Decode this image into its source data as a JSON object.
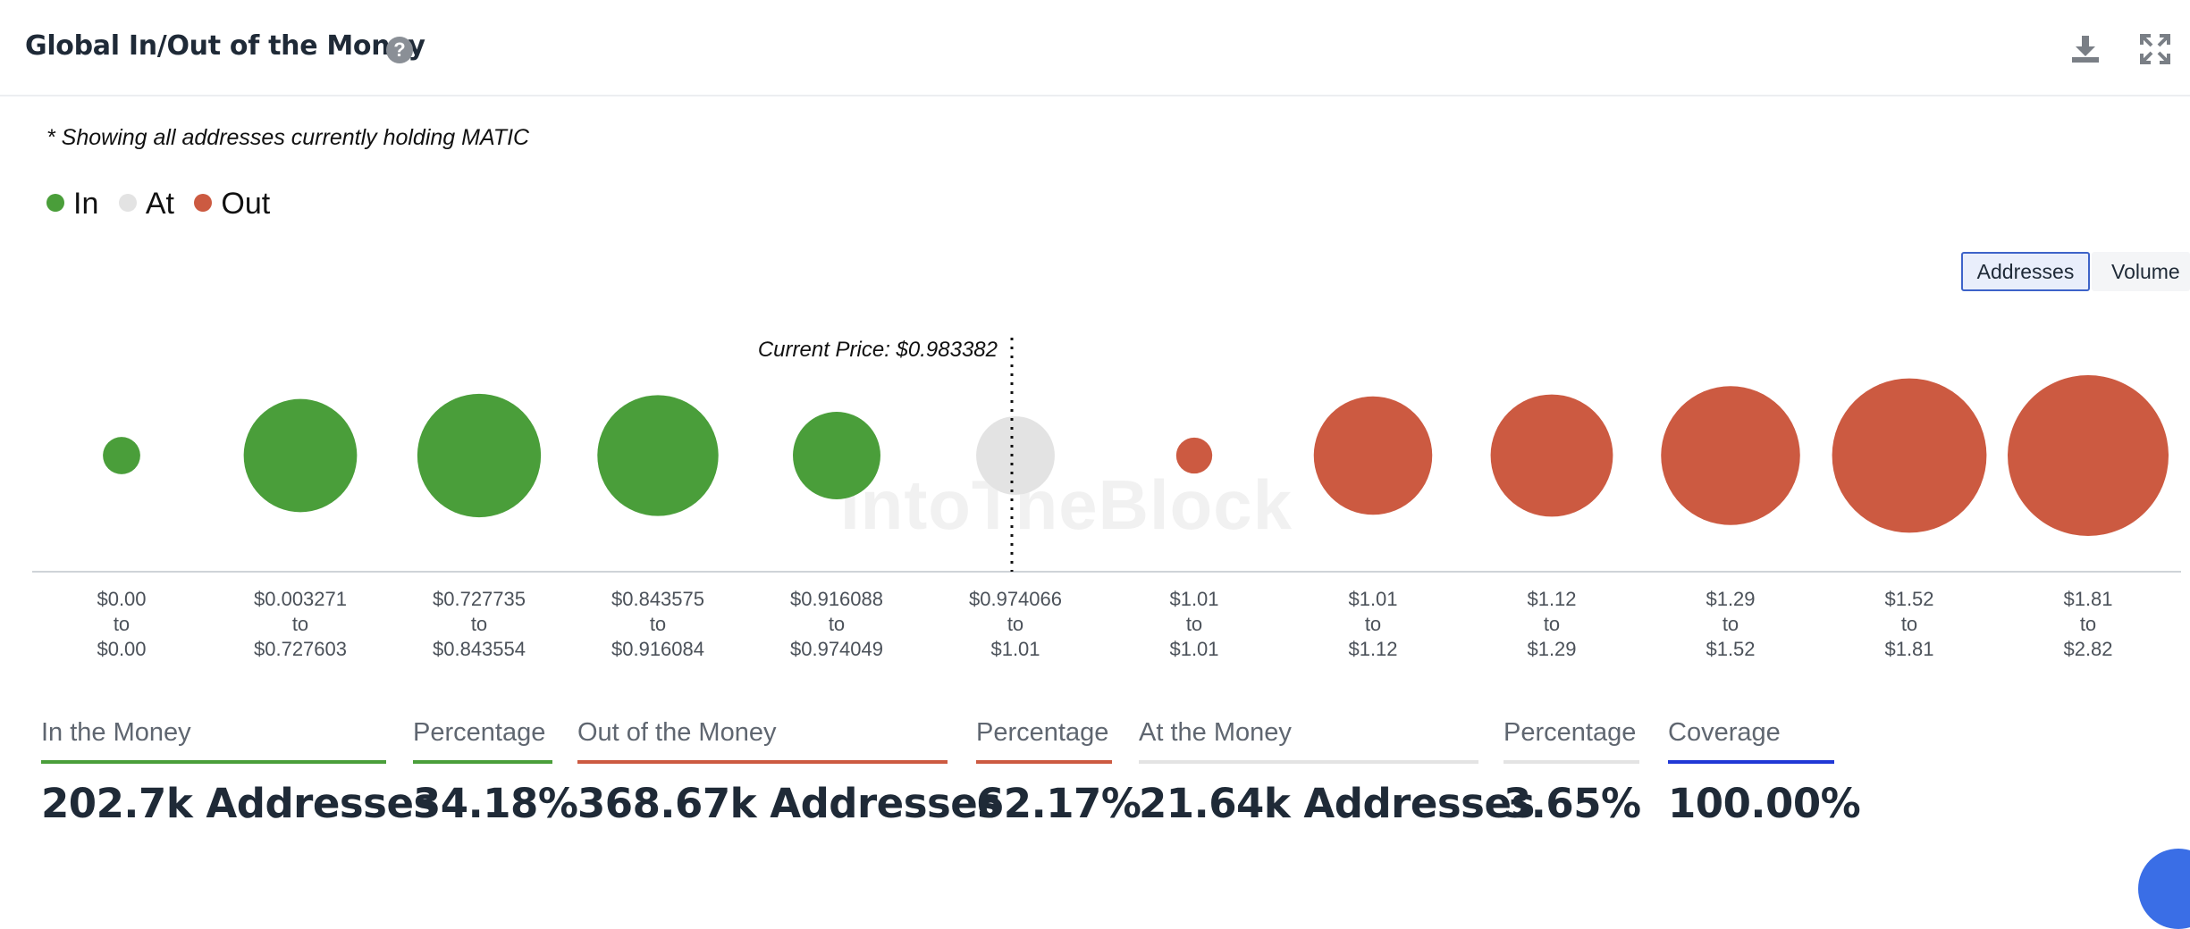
{
  "header": {
    "title": "Global In/Out of the Money",
    "help_icon": "question-circle-icon",
    "download_icon": "download-icon",
    "expand_icon": "expand-icon"
  },
  "note": "* Showing all addresses currently holding MATIC",
  "legend": [
    {
      "label": "In",
      "color": "#4a9e3a"
    },
    {
      "label": "At",
      "color": "#e3e3e3"
    },
    {
      "label": "Out",
      "color": "#cc5a41"
    }
  ],
  "toggle": {
    "addresses_label": "Addresses",
    "volume_label": "Volume",
    "selected": "Addresses"
  },
  "chart_data": {
    "type": "bubble",
    "current_price_label": "Current Price: $0.983382",
    "current_price": 0.983382,
    "watermark": "IntoTheBlock",
    "categories": [
      {
        "from": "$0.00",
        "to": "$0.00",
        "status": "in",
        "relative_size": 0.04
      },
      {
        "from": "$0.003271",
        "to": "$0.727603",
        "status": "in",
        "relative_size": 0.63
      },
      {
        "from": "$0.727735",
        "to": "$0.843554",
        "status": "in",
        "relative_size": 0.71
      },
      {
        "from": "$0.843575",
        "to": "$0.916084",
        "status": "in",
        "relative_size": 0.69
      },
      {
        "from": "$0.916088",
        "to": "$0.974049",
        "status": "in",
        "relative_size": 0.43
      },
      {
        "from": "$0.974066",
        "to": "$1.01",
        "status": "at",
        "relative_size": 0.36
      },
      {
        "from": "$1.01",
        "to": "$1.01",
        "status": "out",
        "relative_size": 0.03
      },
      {
        "from": "$1.01",
        "to": "$1.12",
        "status": "out",
        "relative_size": 0.67
      },
      {
        "from": "$1.12",
        "to": "$1.29",
        "status": "out",
        "relative_size": 0.7
      },
      {
        "from": "$1.29",
        "to": "$1.52",
        "status": "out",
        "relative_size": 0.83
      },
      {
        "from": "$1.52",
        "to": "$1.81",
        "status": "out",
        "relative_size": 0.95
      },
      {
        "from": "$1.81",
        "to": "$2.82",
        "status": "out",
        "relative_size": 1.0
      }
    ],
    "colors": {
      "in": "#4a9e3a",
      "at": "#e3e3e3",
      "out": "#cc5a41"
    }
  },
  "stats": [
    {
      "label": "In the Money",
      "value": "202.7k Addresses",
      "color": "#4a9e3a"
    },
    {
      "label": "Percentage",
      "value": "34.18%",
      "color": "#4a9e3a"
    },
    {
      "label": "Out of the Money",
      "value": "368.67k Addresses",
      "color": "#cc5a41"
    },
    {
      "label": "Percentage",
      "value": "62.17%",
      "color": "#cc5a41"
    },
    {
      "label": "At the Money",
      "value": "21.64k Addresses",
      "color": "#e3e3e3"
    },
    {
      "label": "Percentage",
      "value": "3.65%",
      "color": "#e3e3e3"
    },
    {
      "label": "Coverage",
      "value": "100.00%",
      "color": "#2038d6"
    }
  ]
}
